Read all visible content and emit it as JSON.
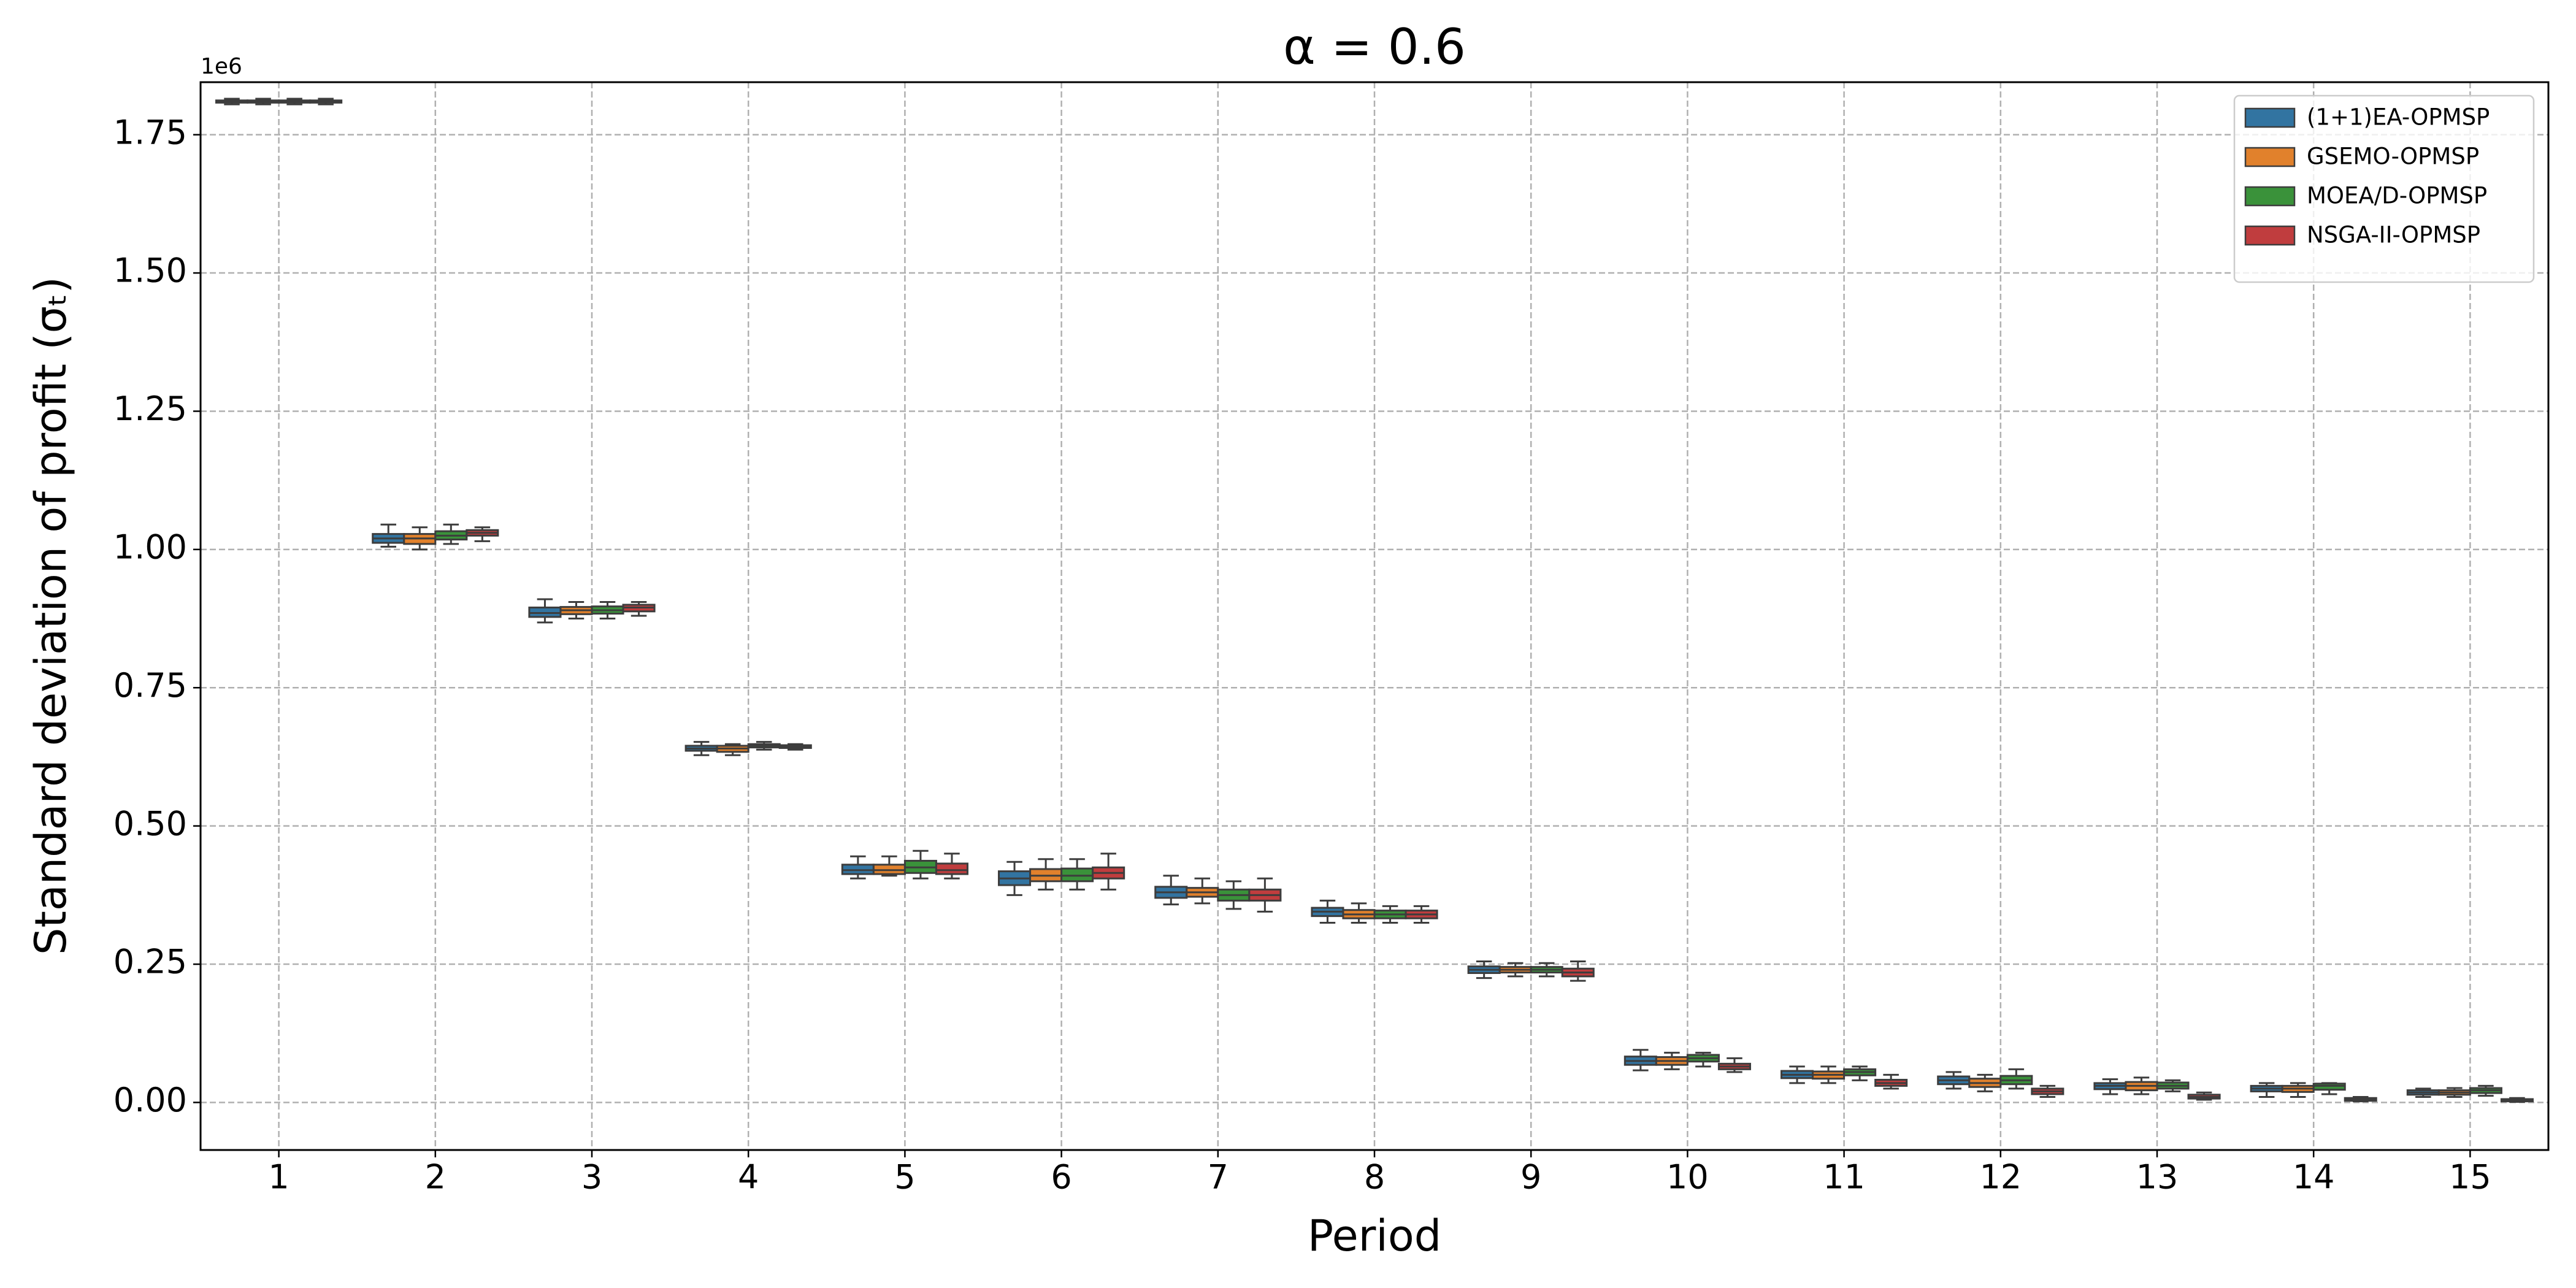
{
  "chart_data": {
    "type": "box",
    "title": "α = 0.6",
    "x_label": "Period",
    "y_label": "Standard deviation of profit (σₜ)",
    "y_offset_text": "1e6",
    "categories": [
      "1",
      "2",
      "3",
      "4",
      "5",
      "6",
      "7",
      "8",
      "9",
      "10",
      "11",
      "12",
      "13",
      "14",
      "15"
    ],
    "ylim": [
      -0.086,
      1.845
    ],
    "yticks": [
      {
        "value": 0,
        "label": "0.00"
      },
      {
        "value": 0.25,
        "label": "0.25"
      },
      {
        "value": 0.5,
        "label": "0.50"
      },
      {
        "value": 0.75,
        "label": "0.75"
      },
      {
        "value": 1,
        "label": "1.00"
      },
      {
        "value": 1.25,
        "label": "1.25"
      },
      {
        "value": 1.5,
        "label": "1.50"
      },
      {
        "value": 1.75,
        "label": "1.75"
      }
    ],
    "grid": true,
    "legend": "upper right",
    "series": [
      {
        "name": "(1+1)EA-OPMSP",
        "color": "#3274a1",
        "whislo": [
          1.805,
          1.005,
          0.868,
          0.628,
          0.405,
          0.375,
          0.358,
          0.325,
          0.225,
          0.058,
          0.035,
          0.025,
          0.015,
          0.01,
          0.01
        ],
        "q1": [
          1.808,
          1.012,
          0.878,
          0.636,
          0.413,
          0.393,
          0.37,
          0.337,
          0.234,
          0.068,
          0.044,
          0.033,
          0.024,
          0.02,
          0.014
        ],
        "med": [
          1.81,
          1.02,
          0.885,
          0.64,
          0.42,
          0.405,
          0.38,
          0.345,
          0.24,
          0.075,
          0.05,
          0.04,
          0.03,
          0.025,
          0.018
        ],
        "q3": [
          1.812,
          1.028,
          0.895,
          0.645,
          0.43,
          0.418,
          0.39,
          0.352,
          0.246,
          0.083,
          0.057,
          0.047,
          0.035,
          0.03,
          0.022
        ],
        "whishi": [
          1.815,
          1.045,
          0.91,
          0.652,
          0.445,
          0.435,
          0.41,
          0.365,
          0.255,
          0.095,
          0.065,
          0.055,
          0.042,
          0.035,
          0.025
        ]
      },
      {
        "name": "GSEMO-OPMSP",
        "color": "#e1812c",
        "whislo": [
          1.805,
          1.0,
          0.875,
          0.628,
          0.41,
          0.385,
          0.36,
          0.325,
          0.228,
          0.06,
          0.035,
          0.02,
          0.015,
          0.01,
          0.01
        ],
        "q1": [
          1.808,
          1.01,
          0.883,
          0.634,
          0.413,
          0.4,
          0.372,
          0.333,
          0.235,
          0.068,
          0.043,
          0.028,
          0.022,
          0.019,
          0.014
        ],
        "med": [
          1.81,
          1.02,
          0.89,
          0.64,
          0.42,
          0.41,
          0.38,
          0.34,
          0.24,
          0.075,
          0.05,
          0.035,
          0.03,
          0.025,
          0.018
        ],
        "q3": [
          1.812,
          1.028,
          0.896,
          0.645,
          0.43,
          0.422,
          0.388,
          0.348,
          0.245,
          0.082,
          0.056,
          0.043,
          0.037,
          0.03,
          0.022
        ],
        "whishi": [
          1.815,
          1.04,
          0.905,
          0.648,
          0.445,
          0.44,
          0.405,
          0.36,
          0.252,
          0.09,
          0.065,
          0.05,
          0.045,
          0.035,
          0.026
        ]
      },
      {
        "name": "MOEA/D-OPMSP",
        "color": "#3a923a",
        "whislo": [
          1.805,
          1.01,
          0.875,
          0.638,
          0.405,
          0.385,
          0.35,
          0.325,
          0.228,
          0.065,
          0.04,
          0.025,
          0.02,
          0.015,
          0.012
        ],
        "q1": [
          1.808,
          1.018,
          0.884,
          0.642,
          0.415,
          0.4,
          0.365,
          0.333,
          0.235,
          0.074,
          0.049,
          0.033,
          0.025,
          0.023,
          0.017
        ],
        "med": [
          1.81,
          1.025,
          0.89,
          0.645,
          0.425,
          0.41,
          0.375,
          0.34,
          0.24,
          0.08,
          0.055,
          0.04,
          0.03,
          0.03,
          0.022
        ],
        "q3": [
          1.812,
          1.033,
          0.897,
          0.648,
          0.437,
          0.423,
          0.385,
          0.347,
          0.245,
          0.086,
          0.06,
          0.048,
          0.036,
          0.034,
          0.026
        ],
        "whishi": [
          1.815,
          1.045,
          0.905,
          0.652,
          0.455,
          0.44,
          0.4,
          0.355,
          0.252,
          0.09,
          0.065,
          0.06,
          0.04,
          0.035,
          0.03
        ]
      },
      {
        "name": "NSGA-II-OPMSP",
        "color": "#c03d3e",
        "whislo": [
          1.805,
          1.015,
          0.88,
          0.638,
          0.405,
          0.385,
          0.345,
          0.325,
          0.22,
          0.055,
          0.025,
          0.01,
          0.005,
          0.002,
          0.001
        ],
        "q1": [
          1.808,
          1.025,
          0.888,
          0.641,
          0.413,
          0.405,
          0.365,
          0.333,
          0.228,
          0.06,
          0.03,
          0.015,
          0.007,
          0.003,
          0.002
        ],
        "med": [
          1.81,
          1.03,
          0.895,
          0.643,
          0.42,
          0.415,
          0.375,
          0.34,
          0.235,
          0.065,
          0.035,
          0.02,
          0.01,
          0.005,
          0.004
        ],
        "q3": [
          1.812,
          1.035,
          0.9,
          0.646,
          0.432,
          0.425,
          0.385,
          0.347,
          0.242,
          0.07,
          0.041,
          0.025,
          0.014,
          0.008,
          0.006
        ],
        "whishi": [
          1.815,
          1.04,
          0.905,
          0.648,
          0.45,
          0.45,
          0.405,
          0.355,
          0.255,
          0.08,
          0.05,
          0.03,
          0.018,
          0.01,
          0.008
        ]
      }
    ]
  }
}
